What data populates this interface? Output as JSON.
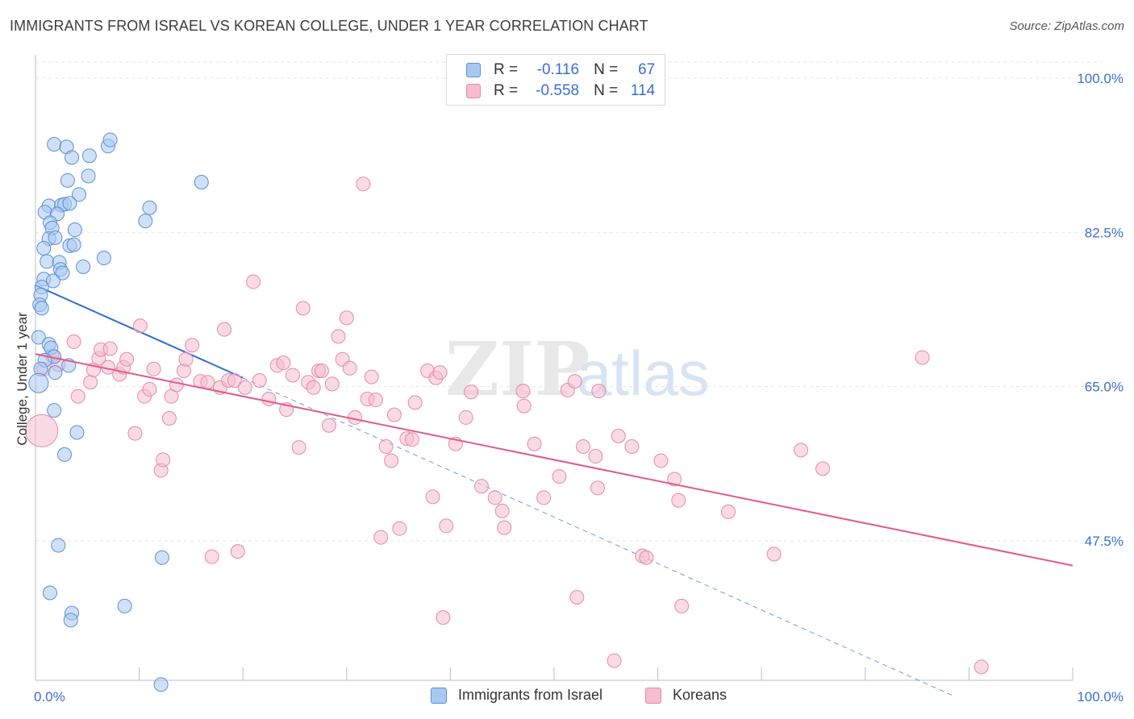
{
  "header": {
    "title": "IMMIGRANTS FROM ISRAEL VS KOREAN COLLEGE, UNDER 1 YEAR CORRELATION CHART",
    "source": "Source: ZipAtlas.com"
  },
  "legend_top": {
    "rows": [
      {
        "r_label": "R =",
        "r_value": "-0.116",
        "n_label": "N =",
        "n_value": "67"
      },
      {
        "r_label": "R =",
        "r_value": "-0.558",
        "n_label": "N =",
        "n_value": "114"
      }
    ]
  },
  "legend_bottom": {
    "items": [
      "Immigrants from Israel",
      "Koreans"
    ]
  },
  "watermark": {
    "zip": "ZIP",
    "atlas": "atlas"
  },
  "colors": {
    "blue_fill": "#a9c8f0",
    "blue_stroke": "#5b8fd6",
    "blue_line": "#2f6fd0",
    "pink_fill": "#f6bcd0",
    "pink_stroke": "#e48aa8",
    "pink_line": "#e05a8a",
    "axis_label": "#3a6fd0",
    "grid": "#e6e6e6"
  },
  "chart_data": {
    "type": "scatter",
    "title": "IMMIGRANTS FROM ISRAEL VS KOREAN COLLEGE, UNDER 1 YEAR CORRELATION CHART",
    "ylabel": "College, Under 1 year",
    "xlim": [
      0,
      100
    ],
    "ylim": [
      31,
      103
    ],
    "x_tick_labels": [
      "0.0%",
      "100.0%"
    ],
    "y_ticks": [
      47.5,
      65.0,
      82.5,
      100.0
    ],
    "y_tick_labels": [
      "47.5%",
      "65.0%",
      "82.5%",
      "100.0%"
    ],
    "grid": true,
    "legend": "bottom-center",
    "series": [
      {
        "name": "Immigrants from Israel",
        "R": -0.116,
        "N": 67,
        "trend": {
          "x": [
            0,
            20
          ],
          "y": [
            76.5,
            66.0
          ],
          "dashed_extension_to": [
            100,
            30.0
          ]
        },
        "points": [
          [
            1.8,
            92.5
          ],
          [
            3.0,
            92.2
          ],
          [
            5.2,
            91.2
          ],
          [
            7.0,
            92.3
          ],
          [
            7.2,
            93.0
          ],
          [
            3.5,
            91.0
          ],
          [
            3.1,
            88.4
          ],
          [
            5.1,
            88.9
          ],
          [
            16.0,
            88.2
          ],
          [
            4.2,
            86.8
          ],
          [
            1.3,
            85.5
          ],
          [
            2.5,
            85.6
          ],
          [
            2.8,
            85.7
          ],
          [
            3.3,
            85.8
          ],
          [
            11.0,
            85.3
          ],
          [
            0.9,
            84.8
          ],
          [
            2.1,
            84.6
          ],
          [
            1.4,
            83.6
          ],
          [
            10.6,
            83.8
          ],
          [
            1.6,
            83.0
          ],
          [
            3.8,
            82.8
          ],
          [
            1.3,
            81.8
          ],
          [
            1.9,
            81.9
          ],
          [
            3.3,
            81.0
          ],
          [
            3.7,
            81.1
          ],
          [
            0.8,
            80.7
          ],
          [
            6.6,
            79.6
          ],
          [
            1.1,
            79.2
          ],
          [
            2.3,
            79.1
          ],
          [
            4.6,
            78.6
          ],
          [
            2.4,
            78.3
          ],
          [
            2.6,
            77.9
          ],
          [
            0.8,
            77.2
          ],
          [
            1.7,
            77.0
          ],
          [
            0.6,
            76.3
          ],
          [
            0.5,
            75.4
          ],
          [
            0.4,
            74.3
          ],
          [
            0.6,
            73.9
          ],
          [
            0.3,
            70.6
          ],
          [
            1.3,
            69.8
          ],
          [
            1.5,
            69.4
          ],
          [
            1.8,
            68.4
          ],
          [
            0.9,
            68.0
          ],
          [
            3.2,
            67.4
          ],
          [
            1.9,
            66.6
          ],
          [
            0.5,
            67.0
          ],
          [
            0.3,
            65.4
          ],
          [
            1.8,
            62.3
          ],
          [
            4.0,
            59.8
          ],
          [
            2.8,
            57.3
          ],
          [
            2.2,
            47.0
          ],
          [
            12.2,
            45.6
          ],
          [
            1.4,
            41.6
          ],
          [
            3.5,
            39.3
          ],
          [
            3.4,
            38.5
          ],
          [
            8.6,
            40.1
          ],
          [
            12.1,
            31.2
          ]
        ]
      },
      {
        "name": "Koreans",
        "R": -0.558,
        "N": 114,
        "trend": {
          "x": [
            0,
            100
          ],
          "y": [
            68.7,
            44.7
          ]
        },
        "points": [
          [
            0.6,
            60.0
          ],
          [
            0.8,
            67.0
          ],
          [
            1.6,
            68.5
          ],
          [
            2.2,
            67.5
          ],
          [
            3.7,
            70.1
          ],
          [
            4.1,
            63.9
          ],
          [
            5.3,
            65.5
          ],
          [
            5.6,
            66.9
          ],
          [
            6.1,
            68.2
          ],
          [
            6.3,
            69.2
          ],
          [
            7.0,
            67.2
          ],
          [
            7.2,
            69.3
          ],
          [
            8.1,
            66.4
          ],
          [
            8.5,
            67.2
          ],
          [
            8.8,
            68.1
          ],
          [
            9.6,
            59.7
          ],
          [
            10.1,
            71.9
          ],
          [
            10.5,
            63.9
          ],
          [
            11.0,
            64.7
          ],
          [
            11.4,
            67.0
          ],
          [
            12.1,
            55.5
          ],
          [
            12.3,
            56.7
          ],
          [
            12.9,
            61.4
          ],
          [
            13.1,
            63.9
          ],
          [
            13.6,
            65.2
          ],
          [
            14.3,
            66.8
          ],
          [
            14.5,
            68.1
          ],
          [
            15.1,
            69.7
          ],
          [
            15.9,
            65.6
          ],
          [
            16.6,
            65.5
          ],
          [
            17.0,
            45.7
          ],
          [
            17.8,
            64.9
          ],
          [
            18.2,
            71.5
          ],
          [
            18.6,
            65.7
          ],
          [
            19.2,
            65.7
          ],
          [
            19.5,
            46.3
          ],
          [
            20.2,
            64.9
          ],
          [
            21.0,
            76.9
          ],
          [
            21.6,
            65.7
          ],
          [
            22.5,
            63.6
          ],
          [
            23.3,
            67.4
          ],
          [
            23.9,
            67.7
          ],
          [
            24.2,
            62.4
          ],
          [
            24.8,
            66.3
          ],
          [
            25.4,
            58.1
          ],
          [
            25.8,
            73.9
          ],
          [
            26.3,
            65.5
          ],
          [
            26.8,
            64.9
          ],
          [
            27.3,
            66.8
          ],
          [
            27.6,
            66.8
          ],
          [
            28.3,
            60.6
          ],
          [
            28.6,
            65.3
          ],
          [
            29.2,
            70.7
          ],
          [
            29.6,
            68.1
          ],
          [
            30.0,
            72.8
          ],
          [
            30.3,
            67.1
          ],
          [
            30.8,
            61.5
          ],
          [
            31.6,
            88.0
          ],
          [
            32.0,
            63.6
          ],
          [
            32.4,
            66.1
          ],
          [
            32.8,
            63.5
          ],
          [
            33.3,
            47.9
          ],
          [
            33.8,
            58.2
          ],
          [
            34.3,
            56.6
          ],
          [
            34.6,
            61.8
          ],
          [
            35.1,
            48.9
          ],
          [
            35.8,
            59.1
          ],
          [
            36.3,
            59.0
          ],
          [
            36.6,
            63.2
          ],
          [
            37.8,
            66.8
          ],
          [
            38.3,
            52.5
          ],
          [
            38.6,
            66.0
          ],
          [
            39.0,
            66.6
          ],
          [
            39.3,
            38.8
          ],
          [
            39.6,
            49.2
          ],
          [
            40.5,
            58.5
          ],
          [
            41.5,
            61.5
          ],
          [
            42.0,
            64.4
          ],
          [
            43.0,
            53.7
          ],
          [
            44.3,
            52.4
          ],
          [
            45.0,
            50.9
          ],
          [
            45.2,
            49.0
          ],
          [
            47.0,
            64.5
          ],
          [
            47.1,
            62.8
          ],
          [
            48.1,
            58.5
          ],
          [
            49.0,
            52.4
          ],
          [
            50.5,
            54.8
          ],
          [
            51.3,
            64.6
          ],
          [
            52.0,
            65.6
          ],
          [
            52.2,
            41.1
          ],
          [
            52.8,
            58.2
          ],
          [
            54.0,
            57.1
          ],
          [
            54.2,
            53.5
          ],
          [
            54.3,
            64.5
          ],
          [
            55.8,
            33.9
          ],
          [
            56.2,
            59.4
          ],
          [
            57.5,
            58.2
          ],
          [
            58.5,
            45.8
          ],
          [
            58.9,
            45.6
          ],
          [
            60.3,
            56.6
          ],
          [
            61.6,
            54.5
          ],
          [
            62.0,
            52.1
          ],
          [
            62.3,
            40.1
          ],
          [
            66.8,
            50.8
          ],
          [
            71.2,
            46.0
          ],
          [
            73.8,
            57.8
          ],
          [
            75.9,
            55.7
          ],
          [
            85.5,
            68.3
          ],
          [
            91.2,
            33.2
          ]
        ]
      }
    ]
  }
}
